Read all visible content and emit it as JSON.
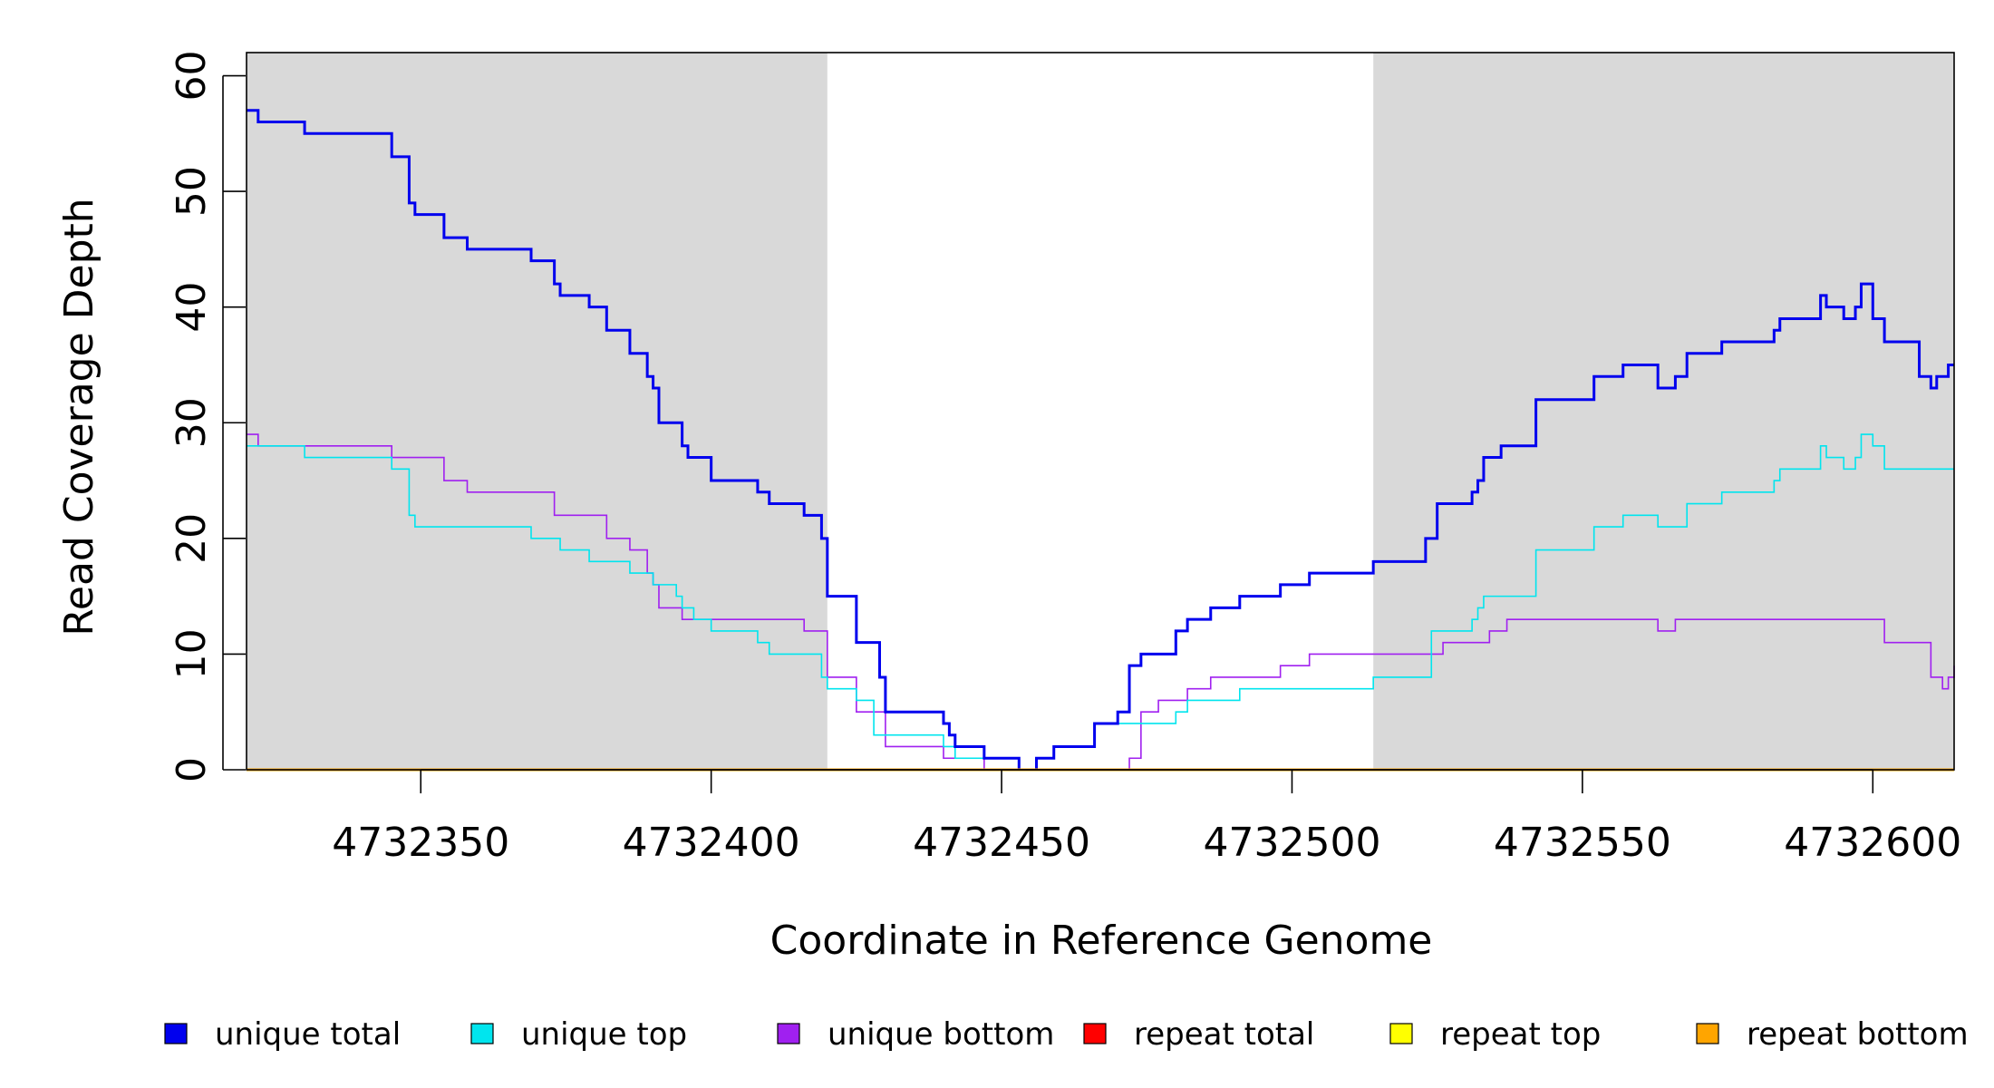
{
  "chart_data": {
    "type": "line",
    "step": true,
    "xlabel": "Coordinate in Reference Genome",
    "ylabel": "Read Coverage Depth",
    "xlim": [
      4732320,
      4732614
    ],
    "ylim": [
      0,
      62
    ],
    "xticks": [
      4732350,
      4732400,
      4732450,
      4732500,
      4732550,
      4732600
    ],
    "xtick_labels": [
      "4732350",
      "4732400",
      "4732450",
      "4732500",
      "4732550",
      "4732600"
    ],
    "yticks": [
      0,
      10,
      20,
      30,
      40,
      50,
      60
    ],
    "ytick_labels": [
      "0",
      "10",
      "20",
      "30",
      "40",
      "50",
      "60"
    ],
    "shaded_regions": [
      [
        4732320,
        4732420
      ],
      [
        4732514,
        4732614
      ]
    ],
    "shade_color": "#d9d9d9",
    "legend_position": "bottom",
    "series": [
      {
        "name": "unique total",
        "color": "#0000ee",
        "width": 3,
        "points": [
          [
            4732320,
            57
          ],
          [
            4732322,
            56
          ],
          [
            4732330,
            55
          ],
          [
            4732345,
            53
          ],
          [
            4732348,
            49
          ],
          [
            4732349,
            48
          ],
          [
            4732354,
            46
          ],
          [
            4732358,
            45
          ],
          [
            4732369,
            44
          ],
          [
            4732373,
            42
          ],
          [
            4732374,
            41
          ],
          [
            4732379,
            40
          ],
          [
            4732382,
            38
          ],
          [
            4732386,
            36
          ],
          [
            4732389,
            34
          ],
          [
            4732390,
            33
          ],
          [
            4732391,
            30
          ],
          [
            4732395,
            28
          ],
          [
            4732396,
            27
          ],
          [
            4732400,
            25
          ],
          [
            4732408,
            24
          ],
          [
            4732410,
            23
          ],
          [
            4732416,
            22
          ],
          [
            4732419,
            20
          ],
          [
            4732420,
            15
          ],
          [
            4732425,
            11
          ],
          [
            4732429,
            8
          ],
          [
            4732430,
            5
          ],
          [
            4732440,
            4
          ],
          [
            4732441,
            3
          ],
          [
            4732442,
            2
          ],
          [
            4732447,
            1
          ],
          [
            4732453,
            0
          ],
          [
            4732456,
            1
          ],
          [
            4732459,
            2
          ],
          [
            4732466,
            4
          ],
          [
            4732470,
            5
          ],
          [
            4732472,
            9
          ],
          [
            4732474,
            10
          ],
          [
            4732480,
            12
          ],
          [
            4732482,
            13
          ],
          [
            4732486,
            14
          ],
          [
            4732491,
            15
          ],
          [
            4732498,
            16
          ],
          [
            4732503,
            17
          ],
          [
            4732514,
            18
          ],
          [
            4732523,
            20
          ],
          [
            4732525,
            23
          ],
          [
            4732531,
            24
          ],
          [
            4732532,
            25
          ],
          [
            4732533,
            27
          ],
          [
            4732536,
            28
          ],
          [
            4732542,
            32
          ],
          [
            4732552,
            34
          ],
          [
            4732557,
            35
          ],
          [
            4732563,
            33
          ],
          [
            4732566,
            34
          ],
          [
            4732568,
            36
          ],
          [
            4732574,
            37
          ],
          [
            4732583,
            38
          ],
          [
            4732584,
            39
          ],
          [
            4732591,
            41
          ],
          [
            4732592,
            40
          ],
          [
            4732595,
            39
          ],
          [
            4732597,
            40
          ],
          [
            4732598,
            42
          ],
          [
            4732600,
            39
          ],
          [
            4732602,
            37
          ],
          [
            4732608,
            34
          ],
          [
            4732610,
            33
          ],
          [
            4732611,
            34
          ],
          [
            4732613,
            35
          ],
          [
            4732614,
            35
          ]
        ]
      },
      {
        "name": "unique top",
        "color": "#00e5ee",
        "width": 1.6,
        "points": [
          [
            4732320,
            28
          ],
          [
            4732330,
            27
          ],
          [
            4732345,
            26
          ],
          [
            4732348,
            22
          ],
          [
            4732349,
            21
          ],
          [
            4732369,
            20
          ],
          [
            4732374,
            19
          ],
          [
            4732379,
            18
          ],
          [
            4732386,
            17
          ],
          [
            4732390,
            16
          ],
          [
            4732394,
            15
          ],
          [
            4732395,
            14
          ],
          [
            4732397,
            13
          ],
          [
            4732400,
            12
          ],
          [
            4732408,
            11
          ],
          [
            4732410,
            10
          ],
          [
            4732419,
            8
          ],
          [
            4732420,
            7
          ],
          [
            4732425,
            6
          ],
          [
            4732428,
            3
          ],
          [
            4732440,
            2
          ],
          [
            4732442,
            1
          ],
          [
            4732453,
            0
          ],
          [
            4732456,
            1
          ],
          [
            4732459,
            2
          ],
          [
            4732466,
            4
          ],
          [
            4732480,
            5
          ],
          [
            4732482,
            6
          ],
          [
            4732491,
            7
          ],
          [
            4732514,
            8
          ],
          [
            4732524,
            12
          ],
          [
            4732531,
            13
          ],
          [
            4732532,
            14
          ],
          [
            4732533,
            15
          ],
          [
            4732542,
            19
          ],
          [
            4732552,
            21
          ],
          [
            4732557,
            22
          ],
          [
            4732563,
            21
          ],
          [
            4732568,
            23
          ],
          [
            4732574,
            24
          ],
          [
            4732583,
            25
          ],
          [
            4732584,
            26
          ],
          [
            4732591,
            28
          ],
          [
            4732592,
            27
          ],
          [
            4732595,
            26
          ],
          [
            4732597,
            27
          ],
          [
            4732598,
            29
          ],
          [
            4732600,
            28
          ],
          [
            4732602,
            26
          ],
          [
            4732614,
            26
          ]
        ]
      },
      {
        "name": "unique bottom",
        "color": "#a020f0",
        "width": 1.6,
        "points": [
          [
            4732320,
            29
          ],
          [
            4732322,
            28
          ],
          [
            4732345,
            27
          ],
          [
            4732354,
            25
          ],
          [
            4732358,
            24
          ],
          [
            4732373,
            22
          ],
          [
            4732382,
            20
          ],
          [
            4732386,
            19
          ],
          [
            4732389,
            17
          ],
          [
            4732390,
            16
          ],
          [
            4732391,
            14
          ],
          [
            4732395,
            13
          ],
          [
            4732416,
            12
          ],
          [
            4732420,
            8
          ],
          [
            4732425,
            5
          ],
          [
            4732430,
            2
          ],
          [
            4732440,
            1
          ],
          [
            4732447,
            0
          ],
          [
            4732472,
            1
          ],
          [
            4732474,
            5
          ],
          [
            4732477,
            6
          ],
          [
            4732482,
            7
          ],
          [
            4732486,
            8
          ],
          [
            4732498,
            9
          ],
          [
            4732503,
            10
          ],
          [
            4732526,
            11
          ],
          [
            4732534,
            12
          ],
          [
            4732537,
            13
          ],
          [
            4732563,
            12
          ],
          [
            4732566,
            13
          ],
          [
            4732602,
            11
          ],
          [
            4732610,
            8
          ],
          [
            4732612,
            7
          ],
          [
            4732613,
            8
          ],
          [
            4732614,
            9
          ]
        ]
      },
      {
        "name": "repeat total",
        "color": "#ff0000",
        "width": 2,
        "points": [
          [
            4732320,
            0
          ],
          [
            4732614,
            0
          ]
        ]
      },
      {
        "name": "repeat top",
        "color": "#ffff00",
        "width": 2,
        "points": [
          [
            4732320,
            0
          ],
          [
            4732614,
            0
          ]
        ]
      },
      {
        "name": "repeat bottom",
        "color": "#ffa500",
        "width": 3,
        "points": [
          [
            4732320,
            0
          ],
          [
            4732614,
            0
          ]
        ]
      }
    ]
  }
}
